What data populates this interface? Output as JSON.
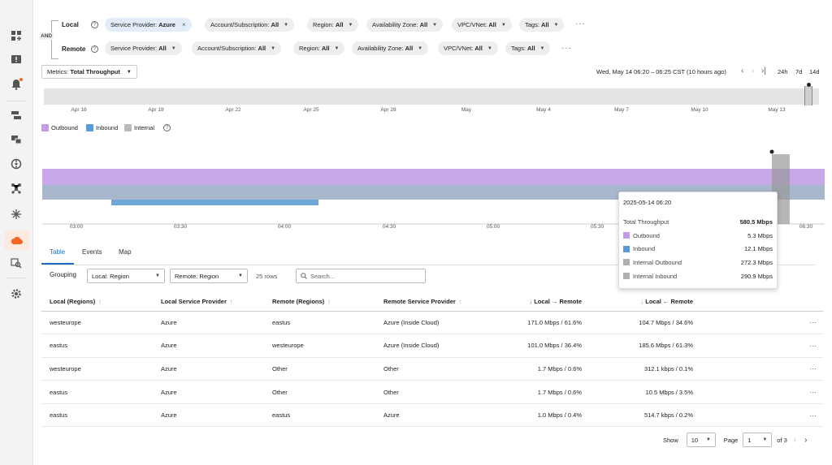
{
  "filters": {
    "and_label": "AND",
    "local": {
      "label": "Local",
      "chips": [
        {
          "key": "Service Provider:",
          "value": "Azure",
          "selected": true
        },
        {
          "key": "Account/Subscription:",
          "value": "All"
        },
        {
          "key": "Region:",
          "value": "All"
        },
        {
          "key": "Availability Zone:",
          "value": "All"
        },
        {
          "key": "VPC/VNet:",
          "value": "All"
        },
        {
          "key": "Tags:",
          "value": "All"
        }
      ]
    },
    "remote": {
      "label": "Remote",
      "chips": [
        {
          "key": "Service Provider:",
          "value": "All"
        },
        {
          "key": "Account/Subscription:",
          "value": "All"
        },
        {
          "key": "Region:",
          "value": "All"
        },
        {
          "key": "Availability Zone:",
          "value": "All"
        },
        {
          "key": "VPC/VNet:",
          "value": "All"
        },
        {
          "key": "Tags:",
          "value": "All"
        }
      ]
    },
    "more": "···"
  },
  "metrics": {
    "label": "Metrics:",
    "value": "Total Throughput"
  },
  "time": {
    "range_text": "Wed, May 14 06:20 – 06:25 CST (10 hours ago)",
    "ranges": [
      "24h",
      "7d",
      "14d"
    ]
  },
  "overview_labels": [
    "Apr 16",
    "Apr 19",
    "Apr 22",
    "Apr 25",
    "Apr 28",
    "May",
    "May 4",
    "May 7",
    "May 10",
    "May 13"
  ],
  "legend": [
    {
      "label": "Outbound",
      "color": "#c39be6"
    },
    {
      "label": "Inbound",
      "color": "#5b9bd5"
    },
    {
      "label": "Internal",
      "color": "#b9b9b9"
    }
  ],
  "chart_data": {
    "type": "area",
    "x_ticks": [
      "03:00",
      "03:30",
      "04:00",
      "04:30",
      "05:00",
      "05:30",
      "06:00",
      "06:30"
    ],
    "series": [
      {
        "name": "Outbound",
        "color": "#c39be6"
      },
      {
        "name": "Inbound",
        "color": "#5b9bd5"
      },
      {
        "name": "Internal",
        "color": "#b9b9b9"
      }
    ]
  },
  "tooltip": {
    "date": "2025-05-14 06:20",
    "total_label": "Total Throughput",
    "total_value": "580.5 Mbps",
    "rows": [
      {
        "label": "Outbound",
        "value": "5.3 Mbps",
        "color": "#c39be6"
      },
      {
        "label": "Inbound",
        "value": "12.1 Mbps",
        "color": "#5b9bd5"
      },
      {
        "label": "Internal Outbound",
        "value": "272.3 Mbps",
        "color": "#b0b0b0"
      },
      {
        "label": "Internal Inbound",
        "value": "290.9 Mbps",
        "color": "#b0b0b0"
      }
    ]
  },
  "tabs": [
    "Table",
    "Events",
    "Map"
  ],
  "grouping": {
    "label": "Grouping",
    "local": "Local: Region",
    "remote": "Remote: Region",
    "rows_count": "25 rows",
    "search_placeholder": "Search..."
  },
  "table": {
    "headers": [
      "Local (Regions)",
      "Local Service Provider",
      "Remote (Regions)",
      "Remote Service Provider",
      "Local → Remote",
      "Local ← Remote"
    ],
    "rows": [
      [
        "westeurope",
        "Azure",
        "eastus",
        "Azure (Inside Cloud)",
        "171.0 Mbps / 61.6%",
        "104.7 Mbps / 34.6%"
      ],
      [
        "eastus",
        "Azure",
        "westeurope",
        "Azure (Inside Cloud)",
        "101.0 Mbps / 36.4%",
        "185.6 Mbps / 61.3%"
      ],
      [
        "westeurope",
        "Azure",
        "Other",
        "Other",
        "1.7 Mbps / 0.6%",
        "312.1 kbps / 0.1%"
      ],
      [
        "eastus",
        "Azure",
        "Other",
        "Other",
        "1.7 Mbps / 0.6%",
        "10.5 Mbps / 3.5%"
      ],
      [
        "eastus",
        "Azure",
        "eastus",
        "Azure",
        "1.0 Mbps / 0.4%",
        "514.7 kbps / 0.2%"
      ]
    ]
  },
  "pager": {
    "show_label": "Show",
    "show_value": "10",
    "page_label": "Page",
    "page_value": "1",
    "of_label": "of 3"
  }
}
